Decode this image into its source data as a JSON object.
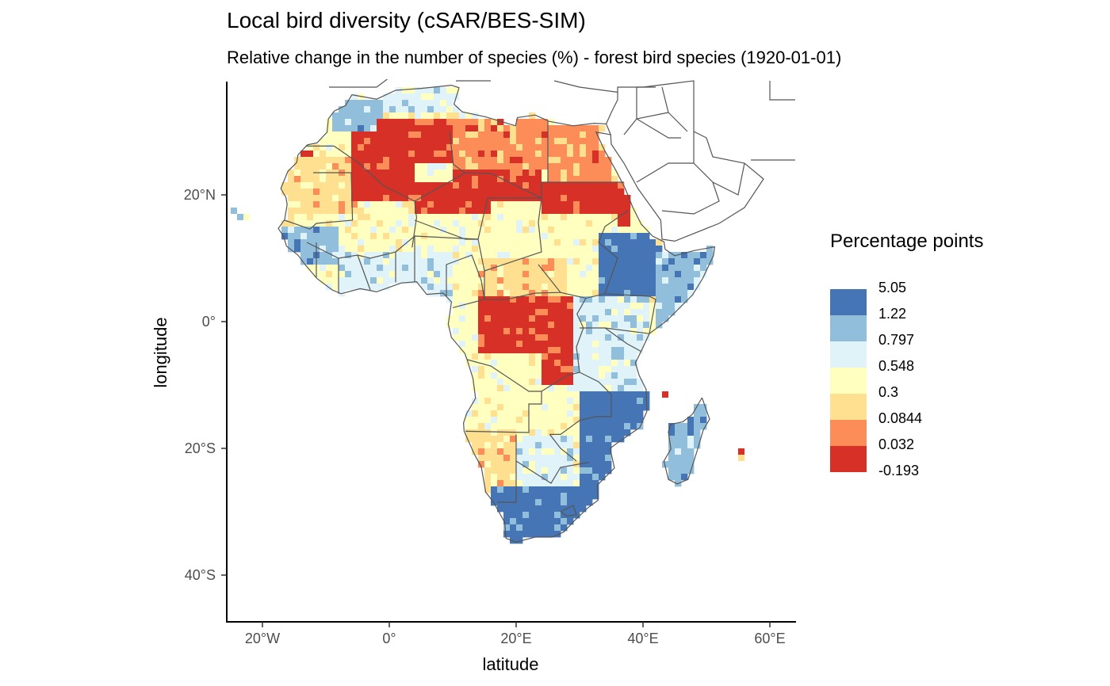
{
  "header": {
    "title": "Local bird diversity (cSAR/BES-SIM)",
    "subtitle": "Relative change in the number of species (%) - forest bird species (1920-01-01)"
  },
  "axes": {
    "xlabel": "latitude",
    "ylabel": "longitude",
    "x_ticks": [
      {
        "value": -20,
        "label": "20°W"
      },
      {
        "value": 0,
        "label": "0°"
      },
      {
        "value": 20,
        "label": "20°E"
      },
      {
        "value": 40,
        "label": "40°E"
      },
      {
        "value": 60,
        "label": "60°E"
      }
    ],
    "y_ticks": [
      {
        "value": 20,
        "label": "20°N"
      },
      {
        "value": 0,
        "label": "0°"
      },
      {
        "value": -20,
        "label": "20°S"
      },
      {
        "value": -40,
        "label": "40°S"
      }
    ],
    "xlim": [
      -26,
      64
    ],
    "ylim": [
      -47,
      38
    ]
  },
  "legend": {
    "title": "Percentage points",
    "items": [
      {
        "label": "5.05",
        "color": "#4575b4"
      },
      {
        "label": "1.22",
        "color": "#91bfdb"
      },
      {
        "label": "0.797",
        "color": "#e0f3f8"
      },
      {
        "label": "0.548",
        "color": "#ffffbf"
      },
      {
        "label": "0.3",
        "color": "#fee090"
      },
      {
        "label": "0.0844",
        "color": "#fc8d59"
      },
      {
        "label": "0.032",
        "color": "#d73027"
      },
      {
        "label": "-0.193",
        "color": ""
      }
    ]
  },
  "map_data": {
    "type": "choropleth-raster",
    "region": "Africa",
    "regions": [
      {
        "name": "NW Morocco",
        "class": 1,
        "lon": [
          -9,
          -1
        ],
        "lat": [
          30,
          35
        ]
      },
      {
        "name": "N Algeria",
        "class": 2,
        "lon": [
          -1,
          10
        ],
        "lat": [
          33,
          37
        ]
      },
      {
        "name": "W Sahara coast",
        "class": 6,
        "lon": [
          -17,
          -12
        ],
        "lat": [
          21,
          27
        ]
      },
      {
        "name": "Mauritania",
        "class": 4,
        "lon": [
          -17,
          -5
        ],
        "lat": [
          15,
          26
        ]
      },
      {
        "name": "Sahara W",
        "class": 6,
        "lon": [
          -6,
          4
        ],
        "lat": [
          19,
          30
        ]
      },
      {
        "name": "Sahara central",
        "class": 6,
        "lon": [
          -2,
          10
        ],
        "lat": [
          25,
          32
        ]
      },
      {
        "name": "Libya S",
        "class": 6,
        "lon": [
          10,
          24
        ],
        "lat": [
          19,
          24
        ]
      },
      {
        "name": "Libya N",
        "class": 5,
        "lon": [
          10,
          25
        ],
        "lat": [
          24,
          32
        ]
      },
      {
        "name": "Egypt",
        "class": 5,
        "lon": [
          25,
          35
        ],
        "lat": [
          22,
          31
        ]
      },
      {
        "name": "Sudan N",
        "class": 6,
        "lon": [
          24,
          38
        ],
        "lat": [
          15,
          22
        ]
      },
      {
        "name": "Niger",
        "class": 6,
        "lon": [
          4,
          16
        ],
        "lat": [
          17,
          22
        ]
      },
      {
        "name": "Sahel",
        "class": 3,
        "lon": [
          -16,
          36
        ],
        "lat": [
          11,
          17
        ]
      },
      {
        "name": "West Africa",
        "class": 1,
        "lon": [
          -17,
          -8
        ],
        "lat": [
          9,
          15
        ]
      },
      {
        "name": "Coastal W Africa",
        "class": 2,
        "lon": [
          -8,
          10
        ],
        "lat": [
          4,
          11
        ]
      },
      {
        "name": "Ethiopia",
        "class": 0,
        "lon": [
          33,
          42
        ],
        "lat": [
          4,
          14
        ]
      },
      {
        "name": "Somalia",
        "class": 1,
        "lon": [
          42,
          51
        ],
        "lat": [
          -1,
          12
        ]
      },
      {
        "name": "C African Rep",
        "class": 4,
        "lon": [
          14,
          28
        ],
        "lat": [
          4,
          10
        ]
      },
      {
        "name": "Congo basin",
        "class": 6,
        "lon": [
          14,
          30
        ],
        "lat": [
          -10,
          4
        ]
      },
      {
        "name": "East Africa",
        "class": 2,
        "lon": [
          29,
          41
        ],
        "lat": [
          -11,
          4
        ]
      },
      {
        "name": "Angola",
        "class": 3,
        "lon": [
          12,
          24
        ],
        "lat": [
          -18,
          -5
        ]
      },
      {
        "name": "Mozambique",
        "class": 0,
        "lon": [
          30,
          41
        ],
        "lat": [
          -26,
          -11
        ]
      },
      {
        "name": "Namibia",
        "class": 4,
        "lon": [
          12,
          20
        ],
        "lat": [
          -29,
          -17
        ]
      },
      {
        "name": "Botswana",
        "class": 2,
        "lon": [
          20,
          29
        ],
        "lat": [
          -27,
          -18
        ]
      },
      {
        "name": "South Africa",
        "class": 0,
        "lon": [
          16,
          33
        ],
        "lat": [
          -35,
          -26
        ]
      },
      {
        "name": "Madagascar",
        "class": 1,
        "lon": [
          43,
          50
        ],
        "lat": [
          -26,
          -12
        ]
      }
    ]
  }
}
